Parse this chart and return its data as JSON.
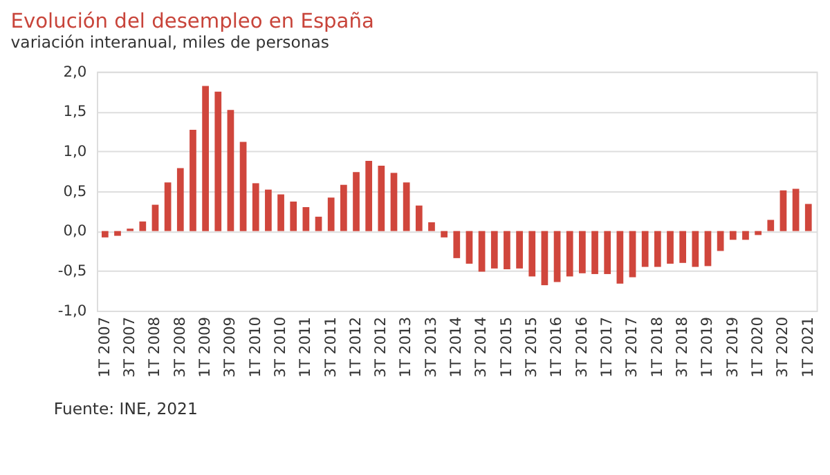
{
  "chart_data": {
    "type": "bar",
    "title": "Evolución del desempleo en España",
    "subtitle": "variación interanual, miles de personas",
    "categories": [
      "1T 2007",
      null,
      "3T 2007",
      null,
      "1T 2008",
      null,
      "3T 2008",
      null,
      "1T 2009",
      null,
      "3T 2009",
      null,
      "1T 2010",
      null,
      "3T 2010",
      null,
      "1T 2011",
      null,
      "3T 2011",
      null,
      "1T 2012",
      null,
      "3T 2012",
      null,
      "1T 2013",
      null,
      "3T 2013",
      null,
      "1T 2014",
      null,
      "3T 2014",
      null,
      "1T 2015",
      null,
      "3T 2015",
      null,
      "1T 2016",
      null,
      "3T 2016",
      null,
      "1T 2017",
      null,
      "3T 2017",
      null,
      "1T 2018",
      null,
      "3T 2018",
      null,
      "1T 2019",
      null,
      "3T 2019",
      null,
      "1T 2020",
      null,
      "3T 2020",
      null,
      "1T 2021"
    ],
    "values": [
      -0.08,
      -0.06,
      0.03,
      0.12,
      0.33,
      0.61,
      0.79,
      1.27,
      1.82,
      1.75,
      1.52,
      1.12,
      0.6,
      0.52,
      0.46,
      0.37,
      0.3,
      0.18,
      0.42,
      0.58,
      0.74,
      0.88,
      0.82,
      0.73,
      0.61,
      0.32,
      0.11,
      -0.08,
      -0.34,
      -0.41,
      -0.51,
      -0.47,
      -0.48,
      -0.47,
      -0.57,
      -0.68,
      -0.64,
      -0.57,
      -0.53,
      -0.54,
      -0.54,
      -0.66,
      -0.58,
      -0.45,
      -0.45,
      -0.41,
      -0.4,
      -0.45,
      -0.44,
      -0.25,
      -0.11,
      -0.11,
      -0.05,
      0.14,
      0.51,
      0.53,
      0.34
    ],
    "color": "#d0463c",
    "ylim": [
      -1.0,
      2.0
    ],
    "yticks": [
      {
        "value": -1.0,
        "label": "-1,0"
      },
      {
        "value": -0.5,
        "label": "-0,5"
      },
      {
        "value": 0.0,
        "label": "0,0"
      },
      {
        "value": 0.5,
        "label": "0,5"
      },
      {
        "value": 1.0,
        "label": "1,0"
      },
      {
        "value": 1.5,
        "label": "1,5"
      },
      {
        "value": 2.0,
        "label": "2,0"
      }
    ],
    "grid": "y",
    "annotations": [
      "Fuente: INE, 2021"
    ]
  }
}
